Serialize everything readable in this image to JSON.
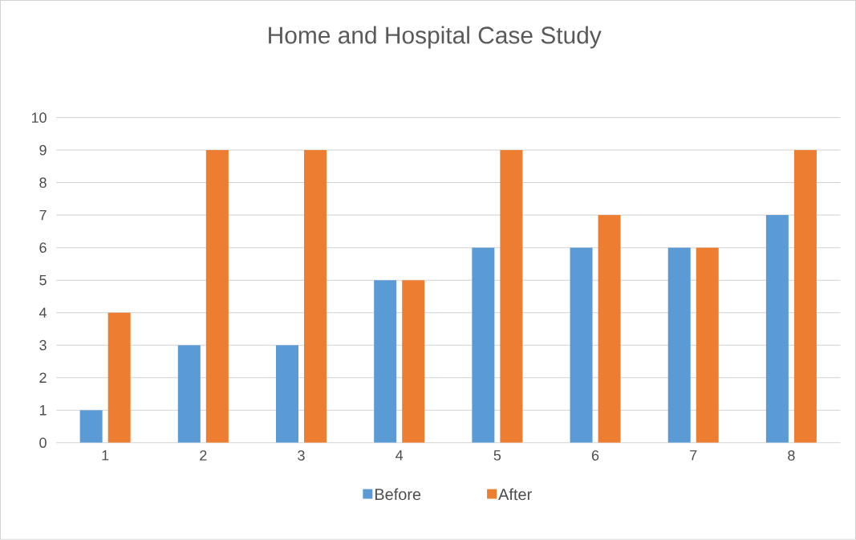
{
  "chart_data": {
    "type": "bar",
    "title": "Home and Hospital Case Study",
    "categories": [
      "1",
      "2",
      "3",
      "4",
      "5",
      "6",
      "7",
      "8"
    ],
    "series": [
      {
        "name": "Before",
        "color": "#5b9bd5",
        "values": [
          1,
          3,
          3,
          5,
          6,
          6,
          6,
          7
        ]
      },
      {
        "name": "After",
        "color": "#ed7d31",
        "values": [
          4,
          9,
          9,
          5,
          9,
          7,
          6,
          9
        ]
      }
    ],
    "ylim": [
      0,
      10
    ],
    "yticks": [
      0,
      1,
      2,
      3,
      4,
      5,
      6,
      7,
      8,
      9,
      10
    ],
    "grid": "y",
    "legend": "bottom"
  }
}
